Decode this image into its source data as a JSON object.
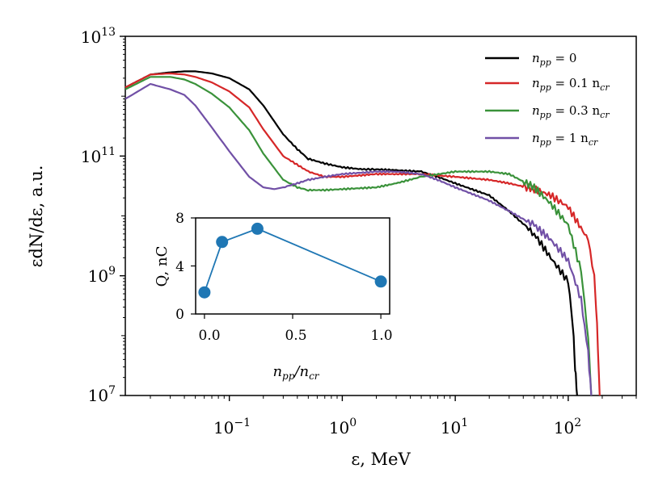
{
  "chart_data": [
    {
      "type": "line",
      "title": "",
      "xlabel": "ε, MeV",
      "ylabel": "εdN/dε, a.u.",
      "xscale": "log",
      "yscale": "log",
      "xlim": [
        0.012,
        400
      ],
      "ylim": [
        10000000.0,
        10000000000000.0
      ],
      "x_tick_labels": [
        {
          "value": 0.1,
          "base": "10",
          "exp": "−1"
        },
        {
          "value": 1,
          "base": "10",
          "exp": "0"
        },
        {
          "value": 10,
          "base": "10",
          "exp": "1"
        },
        {
          "value": 100,
          "base": "10",
          "exp": "2"
        }
      ],
      "y_tick_labels": [
        {
          "value": 10000000.0,
          "base": "10",
          "exp": "7"
        },
        {
          "value": 1000000000.0,
          "base": "10",
          "exp": "9"
        },
        {
          "value": 100000000000.0,
          "base": "10",
          "exp": "11"
        },
        {
          "value": 10000000000000.0,
          "base": "10",
          "exp": "13"
        }
      ],
      "legend_position": "top-right",
      "series": [
        {
          "name": "n_pp = 0",
          "label_main": "n",
          "label_sub": "pp",
          "label_rest": " = 0",
          "label_sub2": "",
          "color": "#000000",
          "x": [
            0.012,
            0.02,
            0.03,
            0.04,
            0.05,
            0.07,
            0.1,
            0.15,
            0.2,
            0.3,
            0.4,
            0.5,
            0.7,
            1,
            1.5,
            2,
            3,
            5,
            7,
            10,
            20,
            30,
            50,
            70,
            100,
            110,
            115,
            120
          ],
          "y": [
            1400000000000.0,
            2300000000000.0,
            2500000000000.0,
            2600000000000.0,
            2600000000000.0,
            2400000000000.0,
            2000000000000.0,
            1300000000000.0,
            700000000000.0,
            230000000000.0,
            130000000000.0,
            90000000000.0,
            75000000000.0,
            65000000000.0,
            60000000000.0,
            60000000000.0,
            58000000000.0,
            55000000000.0,
            45000000000.0,
            35000000000.0,
            22000000000.0,
            12000000000.0,
            5000000000.0,
            2000000000.0,
            800000000.0,
            150000000.0,
            30000000.0,
            10000000.0
          ]
        },
        {
          "name": "n_pp = 0.1 n_cr",
          "label_main": "n",
          "label_sub": "pp",
          "label_rest": " = 0.1 n",
          "label_sub2": "cr",
          "color": "#d62728",
          "x": [
            0.012,
            0.02,
            0.03,
            0.04,
            0.05,
            0.07,
            0.1,
            0.15,
            0.2,
            0.3,
            0.5,
            0.7,
            1,
            2,
            3,
            5,
            10,
            20,
            30,
            50,
            70,
            100,
            150,
            170,
            180,
            190
          ],
          "y": [
            1400000000000.0,
            2300000000000.0,
            2400000000000.0,
            2300000000000.0,
            2100000000000.0,
            1700000000000.0,
            1200000000000.0,
            650000000000.0,
            280000000000.0,
            100000000000.0,
            55000000000.0,
            45000000000.0,
            45000000000.0,
            50000000000.0,
            50000000000.0,
            50000000000.0,
            45000000000.0,
            40000000000.0,
            35000000000.0,
            28000000000.0,
            22000000000.0,
            14000000000.0,
            4000000000.0,
            1000000000.0,
            150000000.0,
            10000000.0
          ]
        },
        {
          "name": "n_pp = 0.3 n_cr",
          "label_main": "n",
          "label_sub": "pp",
          "label_rest": " = 0.3 n",
          "label_sub2": "cr",
          "color": "#3a923a",
          "x": [
            0.012,
            0.02,
            0.03,
            0.04,
            0.05,
            0.07,
            0.1,
            0.15,
            0.2,
            0.3,
            0.4,
            0.5,
            0.7,
            1,
            2,
            3,
            5,
            10,
            20,
            30,
            50,
            70,
            100,
            130,
            150,
            160
          ],
          "y": [
            1300000000000.0,
            2100000000000.0,
            2100000000000.0,
            1900000000000.0,
            1600000000000.0,
            1100000000000.0,
            650000000000.0,
            270000000000.0,
            110000000000.0,
            40000000000.0,
            30000000000.0,
            27000000000.0,
            27000000000.0,
            28000000000.0,
            30000000000.0,
            35000000000.0,
            45000000000.0,
            55000000000.0,
            55000000000.0,
            50000000000.0,
            30000000000.0,
            16000000000.0,
            7000000000.0,
            1200000000.0,
            100000000.0,
            10000000.0
          ]
        },
        {
          "name": "n_pp = 1 n_cr",
          "label_main": "n",
          "label_sub": "pp",
          "label_rest": " = 1 n",
          "label_sub2": "cr",
          "color": "#7150a6",
          "x": [
            0.012,
            0.02,
            0.03,
            0.04,
            0.05,
            0.07,
            0.1,
            0.15,
            0.2,
            0.25,
            0.3,
            0.4,
            0.5,
            0.7,
            1,
            2,
            3,
            5,
            7,
            10,
            20,
            30,
            50,
            70,
            100,
            130,
            150,
            160
          ],
          "y": [
            900000000000.0,
            1600000000000.0,
            1300000000000.0,
            1050000000000.0,
            700000000000.0,
            300000000000.0,
            120000000000.0,
            45000000000.0,
            30000000000.0,
            28000000000.0,
            30000000000.0,
            35000000000.0,
            40000000000.0,
            45000000000.0,
            50000000000.0,
            55000000000.0,
            55000000000.0,
            50000000000.0,
            40000000000.0,
            30000000000.0,
            18000000000.0,
            12000000000.0,
            7000000000.0,
            4000000000.0,
            1800000000.0,
            400000000.0,
            50000000.0,
            10000000.0
          ]
        }
      ]
    },
    {
      "type": "line",
      "title": "",
      "xlabel_main": "n",
      "xlabel_sub": "pp",
      "xlabel_mid": "/n",
      "xlabel_sub2": "cr",
      "ylabel": "Q, nC",
      "position": "lower-left inset",
      "xlim": [
        -0.05,
        1.05
      ],
      "ylim": [
        0,
        8
      ],
      "x_ticks": [
        "0.0",
        "0.5",
        "1.0"
      ],
      "y_ticks": [
        "0",
        "4",
        "8"
      ],
      "color": "#1f77b4",
      "x": [
        0,
        0.1,
        0.3,
        1
      ],
      "y": [
        1.8,
        6.0,
        7.1,
        2.7
      ]
    }
  ]
}
